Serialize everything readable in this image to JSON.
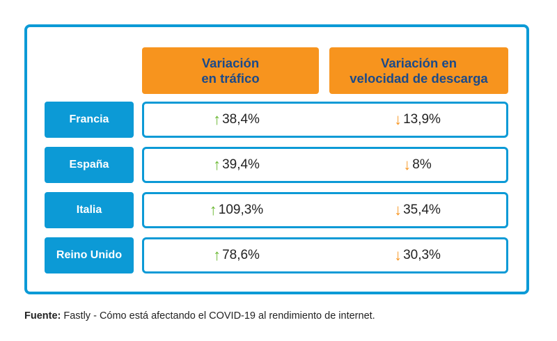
{
  "chart_data": {
    "type": "table",
    "columns": [
      {
        "line1": "Variación",
        "line2": "en tráfico"
      },
      {
        "line1": "Variación en",
        "line2": "velocidad de descarga"
      }
    ],
    "rows": [
      {
        "country": "Francia",
        "traffic": "38,4%",
        "traffic_dir": "up",
        "speed": "13,9%",
        "speed_dir": "down"
      },
      {
        "country": "España",
        "traffic": "39,4%",
        "traffic_dir": "up",
        "speed": "8%",
        "speed_dir": "down"
      },
      {
        "country": "Italia",
        "traffic": "109,3%",
        "traffic_dir": "up",
        "speed": "35,4%",
        "speed_dir": "down"
      },
      {
        "country": "Reino Unido",
        "traffic": "78,6%",
        "traffic_dir": "up",
        "speed": "30,3%",
        "speed_dir": "down"
      }
    ]
  },
  "footer": {
    "label": "Fuente:",
    "text": " Fastly - Cómo está afectando el COVID-19 al rendimiento de internet."
  },
  "colors": {
    "frame": "#0c9ad6",
    "header_bg": "#f7941e",
    "header_text": "#1b4a8a",
    "row_label_bg": "#0c9ad6",
    "arrow_up": "#6ab832",
    "arrow_down": "#f7941e"
  },
  "icons": {
    "up": "arrow-up-icon",
    "down": "arrow-down-icon"
  }
}
